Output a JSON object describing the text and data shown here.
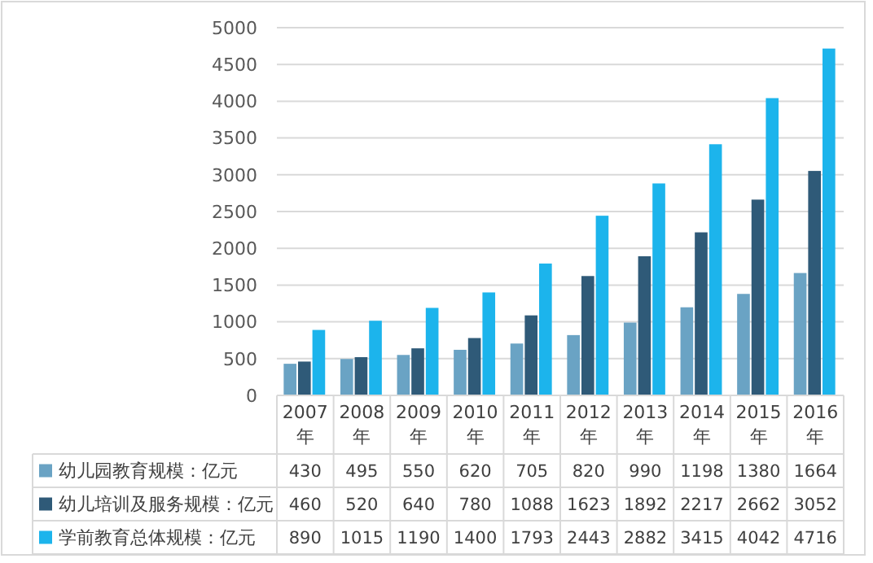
{
  "chart_data": {
    "type": "bar",
    "categories": [
      "2007年",
      "2008年",
      "2009年",
      "2010年",
      "2011年",
      "2012年",
      "2013年",
      "2014年",
      "2015年",
      "2016年"
    ],
    "series": [
      {
        "name": "幼儿园教育规模：亿元",
        "color": "#6aa3c4",
        "values": [
          430,
          495,
          550,
          620,
          705,
          820,
          990,
          1198,
          1380,
          1664
        ]
      },
      {
        "name": "幼儿培训及服务规模：亿元",
        "color": "#2f5a78",
        "values": [
          460,
          520,
          640,
          780,
          1088,
          1623,
          1892,
          2217,
          2662,
          3052
        ]
      },
      {
        "name": "学前教育总体规模：亿元",
        "color": "#1cb4ec",
        "values": [
          890,
          1015,
          1190,
          1400,
          1793,
          2443,
          2882,
          3415,
          4042,
          4716
        ]
      }
    ],
    "ylim": [
      0,
      5000
    ],
    "yticks": [
      0,
      500,
      1000,
      1500,
      2000,
      2500,
      3000,
      3500,
      4000,
      4500,
      5000
    ],
    "grid": "y",
    "legend": "bottom",
    "data_labels": true
  }
}
